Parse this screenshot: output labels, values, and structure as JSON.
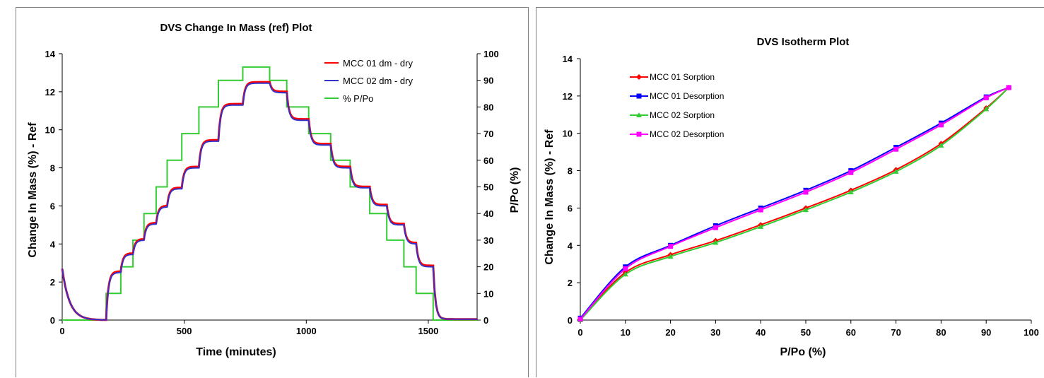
{
  "chart_data": [
    {
      "type": "line",
      "title": "DVS Change In Mass (ref) Plot",
      "xlabel": "Time (minutes)",
      "ylabel": "Change In Mass (%) - Ref",
      "y2label": "P/Po (%)",
      "xlim": [
        0,
        1700
      ],
      "ylim": [
        0,
        14
      ],
      "y2lim": [
        0,
        100
      ],
      "xticks": [
        "0",
        "500",
        "1000",
        "1500"
      ],
      "yticks": [
        "0",
        "2",
        "4",
        "6",
        "8",
        "10",
        "12",
        "14"
      ],
      "y2ticks": [
        "0",
        "10",
        "20",
        "30",
        "40",
        "50",
        "60",
        "70",
        "80",
        "90",
        "100"
      ],
      "grid": false,
      "legend_position": "top-right",
      "steps": [
        {
          "t_start": 0,
          "t_end": 180,
          "rh": 0,
          "mass": 0
        },
        {
          "t_start": 180,
          "t_end": 240,
          "rh": 10,
          "mass": 2.5
        },
        {
          "t_start": 240,
          "t_end": 290,
          "rh": 20,
          "mass": 3.45
        },
        {
          "t_start": 290,
          "t_end": 335,
          "rh": 30,
          "mass": 4.2
        },
        {
          "t_start": 335,
          "t_end": 385,
          "rh": 40,
          "mass": 5.05
        },
        {
          "t_start": 385,
          "t_end": 430,
          "rh": 50,
          "mass": 5.95
        },
        {
          "t_start": 430,
          "t_end": 490,
          "rh": 60,
          "mass": 6.9
        },
        {
          "t_start": 490,
          "t_end": 560,
          "rh": 70,
          "mass": 8.0
        },
        {
          "t_start": 560,
          "t_end": 640,
          "rh": 80,
          "mass": 9.4
        },
        {
          "t_start": 640,
          "t_end": 740,
          "rh": 90,
          "mass": 11.3
        },
        {
          "t_start": 740,
          "t_end": 850,
          "rh": 95,
          "mass": 12.45
        },
        {
          "t_start": 850,
          "t_end": 920,
          "rh": 90,
          "mass": 11.95
        },
        {
          "t_start": 920,
          "t_end": 1010,
          "rh": 80,
          "mass": 10.5
        },
        {
          "t_start": 1010,
          "t_end": 1100,
          "rh": 70,
          "mass": 9.2
        },
        {
          "t_start": 1100,
          "t_end": 1180,
          "rh": 60,
          "mass": 8.0
        },
        {
          "t_start": 1180,
          "t_end": 1260,
          "rh": 50,
          "mass": 6.95
        },
        {
          "t_start": 1260,
          "t_end": 1330,
          "rh": 40,
          "mass": 6.0
        },
        {
          "t_start": 1330,
          "t_end": 1400,
          "rh": 30,
          "mass": 5.0
        },
        {
          "t_start": 1400,
          "t_end": 1450,
          "rh": 20,
          "mass": 4.0
        },
        {
          "t_start": 1450,
          "t_end": 1520,
          "rh": 10,
          "mass": 2.8
        },
        {
          "t_start": 1520,
          "t_end": 1700,
          "rh": 0,
          "mass": 0.05
        }
      ],
      "initial_mass": 2.7,
      "series": [
        {
          "name": "MCC 01 dm - dry",
          "color": "#ff0000",
          "axis": "left",
          "offset": 0.06
        },
        {
          "name": "MCC 02 dm - dry",
          "color": "#3333cc",
          "axis": "left",
          "offset": 0
        },
        {
          "name": "% P/Po",
          "color": "#33cc33",
          "axis": "right"
        }
      ]
    },
    {
      "type": "line",
      "title": "DVS Isotherm Plot",
      "xlabel": "P/Po (%)",
      "ylabel": "Change In Mass (%) - Ref",
      "xlim": [
        0,
        100
      ],
      "ylim": [
        0,
        14
      ],
      "xticks": [
        "0",
        "10",
        "20",
        "30",
        "40",
        "50",
        "60",
        "70",
        "80",
        "90",
        "100"
      ],
      "yticks": [
        "0",
        "2",
        "4",
        "6",
        "8",
        "10",
        "12",
        "14"
      ],
      "grid": false,
      "legend_position": "top-left",
      "series": [
        {
          "name": "MCC 01 Sorption",
          "color": "#ff0000",
          "marker": "diamond",
          "x": [
            0,
            10,
            20,
            30,
            40,
            50,
            60,
            70,
            80,
            90,
            95
          ],
          "y": [
            0.05,
            2.55,
            3.5,
            4.25,
            5.1,
            6.0,
            6.95,
            8.05,
            9.45,
            11.35,
            12.45
          ]
        },
        {
          "name": "MCC 01 Desorption",
          "color": "#0000ff",
          "marker": "square",
          "x": [
            95,
            90,
            80,
            70,
            60,
            50,
            40,
            30,
            20,
            10,
            0
          ],
          "y": [
            12.45,
            11.95,
            10.55,
            9.25,
            8.0,
            6.95,
            6.0,
            5.05,
            4.0,
            2.85,
            0.1
          ]
        },
        {
          "name": "MCC 02 Sorption",
          "color": "#33cc33",
          "marker": "triangle",
          "x": [
            0,
            10,
            20,
            30,
            40,
            50,
            60,
            70,
            80,
            90,
            95
          ],
          "y": [
            0.0,
            2.45,
            3.4,
            4.15,
            5.0,
            5.9,
            6.85,
            7.95,
            9.35,
            11.3,
            12.45
          ]
        },
        {
          "name": "MCC 02 Desorption",
          "color": "#ff00ff",
          "marker": "square",
          "x": [
            95,
            90,
            80,
            70,
            60,
            50,
            40,
            30,
            20,
            10,
            0
          ],
          "y": [
            12.45,
            11.9,
            10.45,
            9.15,
            7.9,
            6.85,
            5.9,
            4.95,
            3.95,
            2.75,
            0.05
          ]
        }
      ]
    }
  ]
}
